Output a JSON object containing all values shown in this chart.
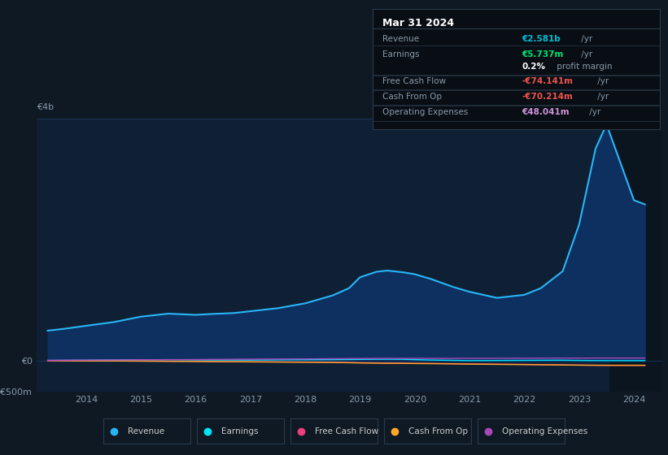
{
  "bg_color": "#0e1923",
  "chart_area_color": "#0f2035",
  "grid_color": "#1e3a5f",
  "title_box": {
    "date": "Mar 31 2024",
    "rows": [
      {
        "label": "Revenue",
        "value_main": "€2.581b",
        "value_suffix": " /yr",
        "value_color": "#00bcd4",
        "separator_before": true
      },
      {
        "label": "Earnings",
        "value_main": "€5.737m",
        "value_suffix": " /yr",
        "value_color": "#00e676",
        "separator_before": false
      },
      {
        "label": "",
        "value_main": "0.2%",
        "value_suffix": " profit margin",
        "value_color": "#ffffff",
        "separator_before": false
      },
      {
        "label": "Free Cash Flow",
        "value_main": "-€74.141m",
        "value_suffix": " /yr",
        "value_color": "#ef5350",
        "separator_before": true
      },
      {
        "label": "Cash From Op",
        "value_main": "-€70.214m",
        "value_suffix": " /yr",
        "value_color": "#ef5350",
        "separator_before": true
      },
      {
        "label": "Operating Expenses",
        "value_main": "€48.041m",
        "value_suffix": " /yr",
        "value_color": "#ce93d8",
        "separator_before": true
      }
    ]
  },
  "years": [
    2013.3,
    2013.6,
    2014.0,
    2014.5,
    2015.0,
    2015.5,
    2016.0,
    2016.3,
    2016.7,
    2017.0,
    2017.5,
    2018.0,
    2018.5,
    2018.8,
    2019.0,
    2019.3,
    2019.5,
    2019.8,
    2020.0,
    2020.3,
    2020.7,
    2021.0,
    2021.5,
    2022.0,
    2022.3,
    2022.7,
    2023.0,
    2023.3,
    2023.5,
    2024.0,
    2024.2
  ],
  "revenue": [
    500,
    530,
    580,
    640,
    730,
    780,
    760,
    775,
    790,
    820,
    870,
    950,
    1080,
    1200,
    1380,
    1470,
    1490,
    1460,
    1430,
    1350,
    1220,
    1140,
    1040,
    1090,
    1200,
    1480,
    2250,
    3500,
    3900,
    2650,
    2581
  ],
  "earnings": [
    10,
    11,
    13,
    16,
    20,
    22,
    19,
    17,
    16,
    15,
    18,
    20,
    22,
    24,
    26,
    28,
    29,
    27,
    22,
    15,
    10,
    6,
    8,
    10,
    11,
    12,
    9,
    7,
    6,
    5.5,
    5.737
  ],
  "free_cash_flow": [
    4,
    2,
    1,
    0,
    -2,
    -4,
    -6,
    -8,
    -10,
    -12,
    -15,
    -18,
    -22,
    -26,
    -29,
    -32,
    -34,
    -36,
    -38,
    -40,
    -44,
    -48,
    -52,
    -56,
    -60,
    -64,
    -68,
    -72,
    -74,
    -74.141,
    -74.141
  ],
  "cash_from_op": [
    6,
    3,
    1,
    0,
    -2,
    -5,
    -8,
    -11,
    -13,
    -15,
    -18,
    -21,
    -25,
    -29,
    -33,
    -36,
    -38,
    -40,
    -42,
    -44,
    -48,
    -52,
    -56,
    -60,
    -63,
    -66,
    -69,
    -70,
    -70.214,
    -70.214,
    -70.214
  ],
  "operating_expenses": [
    10,
    12,
    14,
    17,
    20,
    22,
    24,
    26,
    28,
    30,
    32,
    34,
    37,
    39,
    41,
    42,
    43,
    43,
    43,
    43,
    43,
    43,
    44,
    45,
    46,
    47,
    47,
    48,
    48.041,
    48.041,
    48.041
  ],
  "revenue_color": "#29b6f6",
  "earnings_color": "#00e5ff",
  "fcf_color": "#ec407a",
  "cfo_color": "#ffa726",
  "opex_color": "#ab47bc",
  "fill_color": "#0d3060",
  "shade_x_start": 2023.55,
  "shade_x_end": 2024.5,
  "shade_color": "#0a1520",
  "ylim_min": -500,
  "ylim_max": 4000,
  "xlim_min": 2013.1,
  "xlim_max": 2024.5,
  "ytick_positions": [
    -500,
    0,
    4000
  ],
  "ytick_labels": [
    "-€500m",
    "€0",
    "€4b"
  ],
  "xticks": [
    2014,
    2015,
    2016,
    2017,
    2018,
    2019,
    2020,
    2021,
    2022,
    2023,
    2024
  ],
  "legend_items": [
    {
      "label": "Revenue",
      "color": "#29b6f6"
    },
    {
      "label": "Earnings",
      "color": "#00e5ff"
    },
    {
      "label": "Free Cash Flow",
      "color": "#ec407a"
    },
    {
      "label": "Cash From Op",
      "color": "#ffa726"
    },
    {
      "label": "Operating Expenses",
      "color": "#ab47bc"
    }
  ]
}
